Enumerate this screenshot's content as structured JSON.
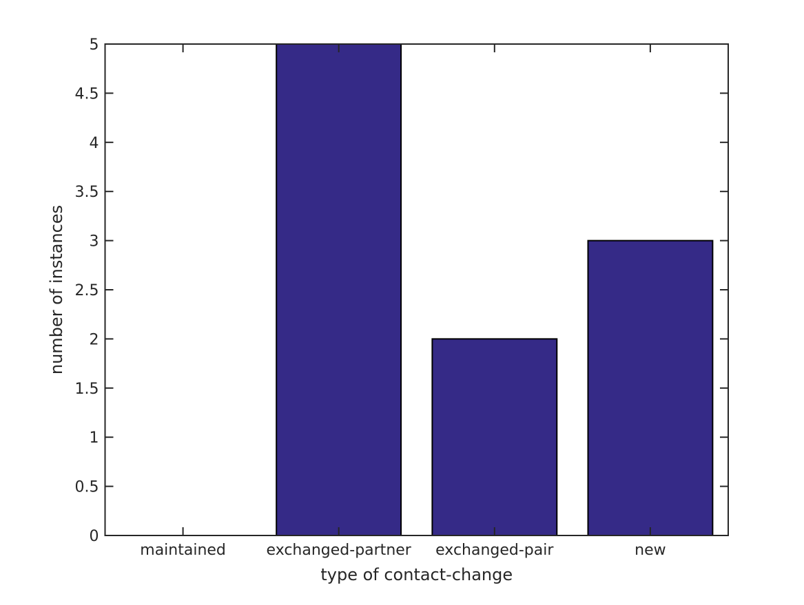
{
  "chart_data": {
    "type": "bar",
    "categories": [
      "maintained",
      "exchanged-partner",
      "exchanged-pair",
      "new"
    ],
    "values": [
      0,
      5,
      2,
      3
    ],
    "title": "",
    "xlabel": "type of contact-change",
    "ylabel": "number of instances",
    "ylim": [
      0,
      5
    ],
    "ytick_step": 0.5,
    "ytick_labels": [
      "0",
      "0.5",
      "1",
      "1.5",
      "2",
      "2.5",
      "3",
      "3.5",
      "4",
      "4.5",
      "5"
    ],
    "bar_rel_width": 0.8,
    "bar_color": "#352A87",
    "bar_edge_color": "#000000",
    "axis_color": "#262626",
    "text_color": "#262626",
    "background_color": "#ffffff",
    "grid": false,
    "legend": "none",
    "box": true,
    "tick_direction": "in"
  }
}
